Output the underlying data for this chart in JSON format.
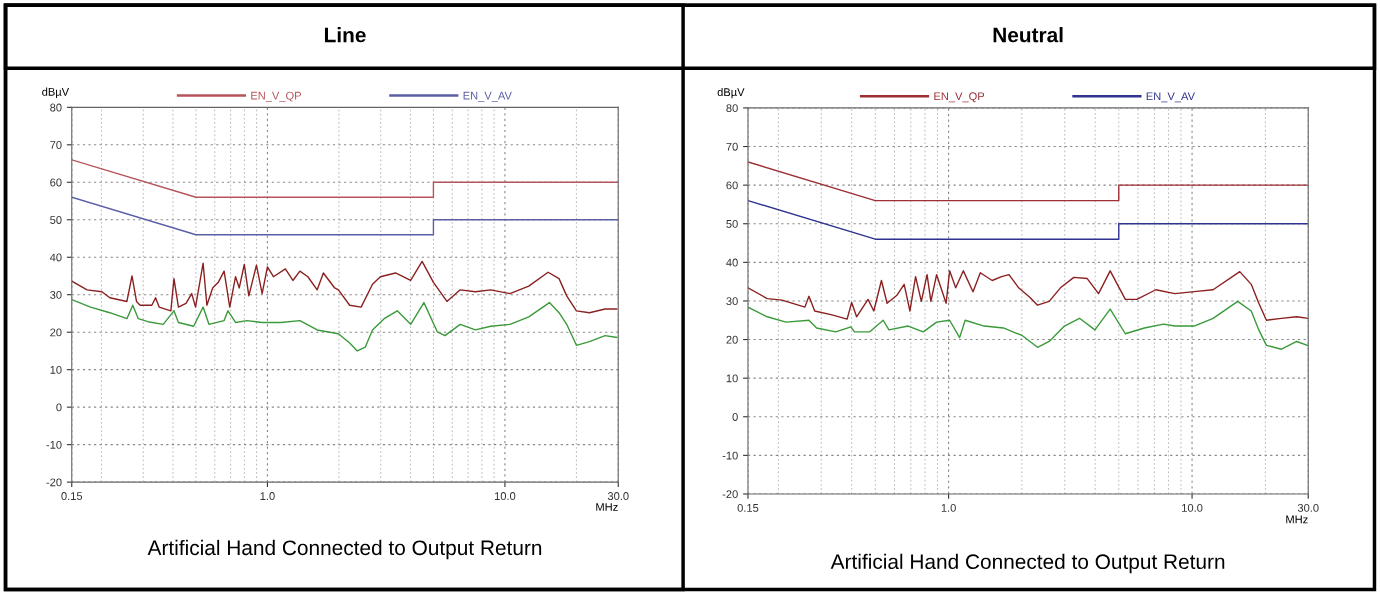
{
  "chart_data": [
    {
      "type": "line",
      "title": "Line",
      "xlabel": "MHz",
      "ylabel": "dBµV",
      "log": "x",
      "grid": true,
      "legend": "top",
      "marker": "none",
      "line_style": "solid",
      "xlim": [
        0.15,
        30.0
      ],
      "xticks": [
        0.15,
        {
          "value": 1.0,
          "label": "1.0"
        },
        {
          "value": 10.0,
          "label": "10.0"
        },
        {
          "value": 30.0,
          "label": "30.0"
        }
      ],
      "ylim": [
        -20,
        80
      ],
      "yticks": [
        -20,
        -10,
        0,
        10,
        20,
        30,
        40,
        50,
        60,
        70,
        80
      ],
      "annotations": [
        "Artificial Hand Connected to Output Return"
      ],
      "series": [
        {
          "name": "EN_V_QP",
          "color": "#b5545a",
          "x": [
            0.15,
            0.5,
            5.0,
            5.0,
            30.0
          ],
          "values": [
            66,
            56,
            56,
            60,
            60
          ]
        },
        {
          "name": "EN_V_AV",
          "color": "#5a5fa5",
          "x": [
            0.15,
            0.5,
            5.0,
            5.0,
            30.0
          ],
          "values": [
            56,
            46,
            46,
            50,
            50
          ]
        },
        {
          "color": "#8b2020",
          "x": [
            0.15,
            0.174,
            0.201,
            0.217,
            0.256,
            0.269,
            0.281,
            0.291,
            0.326,
            0.338,
            0.35,
            0.392,
            0.404,
            0.422,
            0.454,
            0.48,
            0.498,
            0.536,
            0.556,
            0.588,
            0.621,
            0.657,
            0.694,
            0.734,
            0.761,
            0.799,
            0.835,
            0.899,
            0.95,
            1.0,
            1.06,
            1.19,
            1.28,
            1.37,
            1.48,
            1.62,
            1.72,
            1.92,
            1.99,
            2.22,
            2.48,
            2.77,
            2.99,
            3.46,
            4.01,
            4.48,
            5.0,
            5.7,
            6.48,
            7.51,
            8.71,
            10.5,
            12.6,
            15.2,
            16.9,
            18.2,
            20.0,
            22.7,
            26.4,
            29.5
          ],
          "values": [
            33.6,
            31.3,
            30.8,
            29.2,
            28.2,
            35.0,
            28.2,
            27.2,
            27.2,
            29.2,
            26.7,
            25.7,
            34.3,
            26.7,
            27.7,
            30.3,
            26.7,
            38.4,
            27.2,
            31.8,
            33.3,
            36.3,
            26.7,
            34.8,
            31.8,
            38.1,
            29.7,
            37.9,
            30.3,
            37.4,
            34.8,
            36.9,
            33.8,
            36.3,
            34.8,
            31.3,
            35.8,
            31.8,
            31.3,
            27.2,
            26.7,
            32.8,
            34.8,
            35.8,
            33.8,
            38.9,
            33.3,
            28.2,
            31.3,
            30.8,
            31.3,
            30.3,
            32.3,
            36.0,
            34.3,
            29.7,
            25.7,
            25.2,
            26.2,
            26.2
          ]
        },
        {
          "color": "#3a9a3a",
          "x": [
            0.15,
            0.18,
            0.217,
            0.256,
            0.271,
            0.286,
            0.314,
            0.364,
            0.404,
            0.422,
            0.489,
            0.536,
            0.567,
            0.657,
            0.682,
            0.734,
            0.82,
            0.95,
            1.14,
            1.37,
            1.62,
            1.99,
            2.22,
            2.39,
            2.58,
            2.77,
            3.1,
            3.52,
            4.01,
            4.56,
            5.19,
            5.59,
            6.48,
            7.51,
            8.71,
            10.5,
            12.6,
            15.4,
            16.9,
            18.2,
            20.0,
            22.7,
            26.4,
            29.5
          ],
          "values": [
            28.7,
            26.7,
            25.2,
            23.6,
            27.2,
            23.6,
            22.8,
            22.1,
            25.7,
            22.6,
            21.6,
            26.7,
            22.1,
            23.1,
            25.7,
            22.6,
            23.1,
            22.6,
            22.6,
            23.1,
            20.6,
            19.6,
            17.1,
            15.0,
            16.0,
            20.6,
            23.6,
            25.7,
            22.1,
            27.9,
            20.1,
            19.1,
            22.1,
            20.6,
            21.6,
            22.1,
            24.1,
            27.9,
            25.2,
            22.1,
            16.5,
            17.5,
            19.1,
            18.6
          ]
        }
      ]
    },
    {
      "type": "line",
      "title": "Neutral",
      "xlabel": "MHz",
      "ylabel": "dBµV",
      "log": "x",
      "grid": true,
      "legend": "top",
      "marker": "none",
      "line_style": "solid",
      "xlim": [
        0.15,
        30.0
      ],
      "xticks": [
        0.15,
        {
          "value": 1.0,
          "label": "1.0"
        },
        {
          "value": 10.0,
          "label": "10.0"
        },
        {
          "value": 30.0,
          "label": "30.0"
        }
      ],
      "ylim": [
        -20,
        80
      ],
      "yticks": [
        -20,
        -10,
        0,
        10,
        20,
        30,
        40,
        50,
        60,
        70,
        80
      ],
      "annotations": [
        "Artificial Hand Connected to Output Return"
      ],
      "series": [
        {
          "name": "EN_V_QP",
          "color": "#9c2e34",
          "x": [
            0.15,
            0.5,
            5.0,
            5.0,
            30.0
          ],
          "values": [
            66,
            56,
            56,
            60,
            60
          ]
        },
        {
          "name": "EN_V_AV",
          "color": "#2e3290",
          "x": [
            0.15,
            0.5,
            5.0,
            5.0,
            30.0
          ],
          "values": [
            56,
            46,
            46,
            50,
            50
          ]
        },
        {
          "color": "#8b2020",
          "x": [
            0.15,
            0.18,
            0.207,
            0.257,
            0.267,
            0.282,
            0.332,
            0.383,
            0.4,
            0.419,
            0.467,
            0.493,
            0.53,
            0.559,
            0.612,
            0.657,
            0.694,
            0.732,
            0.773,
            0.816,
            0.846,
            0.893,
            0.977,
            1.01,
            1.07,
            1.15,
            1.26,
            1.35,
            1.51,
            1.65,
            1.77,
            1.94,
            2.16,
            2.32,
            2.59,
            2.88,
            3.27,
            3.71,
            4.13,
            4.61,
            5.32,
            5.93,
            7.1,
            8.5,
            10.2,
            12.2,
            15.7,
            17.5,
            18.8,
            20.2,
            23.3,
            26.9,
            29.8
          ],
          "values": [
            33.4,
            30.6,
            30.2,
            28.4,
            31.2,
            27.4,
            26.4,
            25.3,
            29.6,
            25.9,
            30.4,
            27.4,
            35.3,
            29.4,
            31.4,
            34.3,
            27.4,
            36.3,
            29.9,
            36.8,
            29.9,
            36.8,
            29.4,
            37.8,
            33.4,
            37.8,
            32.4,
            37.3,
            35.3,
            36.3,
            36.8,
            33.4,
            30.9,
            28.9,
            29.9,
            33.4,
            36.1,
            35.8,
            31.9,
            37.8,
            30.4,
            30.4,
            32.9,
            31.9,
            32.4,
            32.9,
            37.6,
            34.3,
            29.4,
            25.0,
            25.5,
            25.9,
            25.5
          ]
        },
        {
          "color": "#3a9a3a",
          "x": [
            0.15,
            0.18,
            0.215,
            0.267,
            0.287,
            0.344,
            0.397,
            0.411,
            0.475,
            0.539,
            0.569,
            0.682,
            0.787,
            0.893,
            1.01,
            1.11,
            1.17,
            1.4,
            1.68,
            2.01,
            2.32,
            2.59,
            2.99,
            3.45,
            3.99,
            4.61,
            5.32,
            6.37,
            7.63,
            8.5,
            10.2,
            12.2,
            15.4,
            17.5,
            18.8,
            20.2,
            23.3,
            26.9,
            29.8
          ],
          "values": [
            28.4,
            25.9,
            24.5,
            25.0,
            23.0,
            22.0,
            23.3,
            22.0,
            22.0,
            25.0,
            22.5,
            23.5,
            22.0,
            24.5,
            25.0,
            20.5,
            25.0,
            23.5,
            23.0,
            21.0,
            18.0,
            19.5,
            23.5,
            25.5,
            22.5,
            27.9,
            21.5,
            23.0,
            24.0,
            23.5,
            23.5,
            25.5,
            29.9,
            27.4,
            22.5,
            18.5,
            17.5,
            19.5,
            18.5
          ]
        }
      ]
    }
  ]
}
